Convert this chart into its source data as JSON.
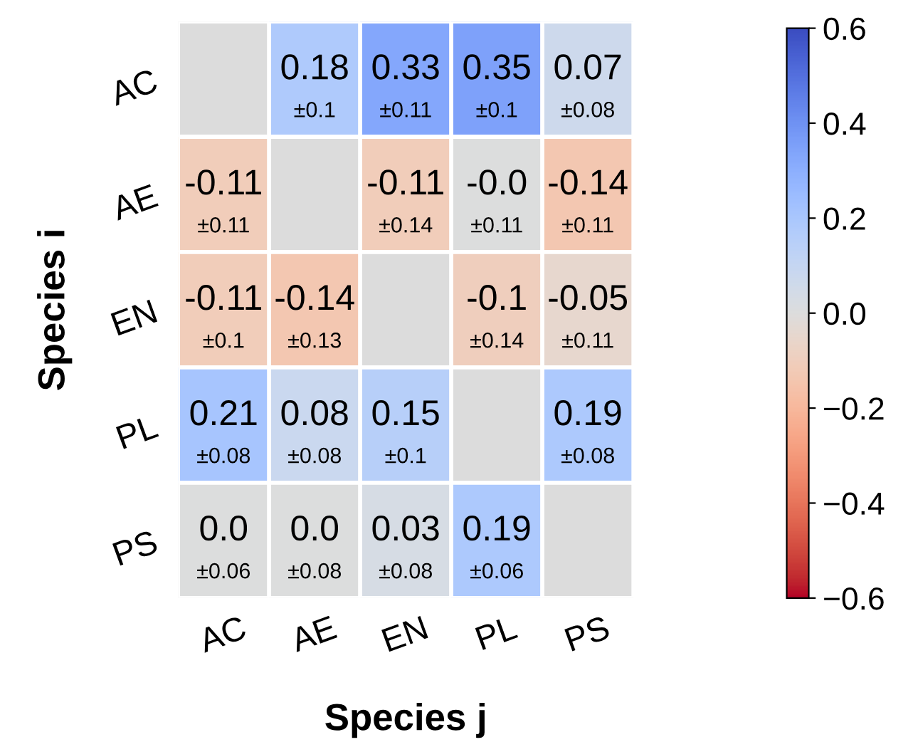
{
  "chart_data": {
    "type": "heatmap",
    "xlabel": "Species j",
    "ylabel": "Species i",
    "categories": [
      "AC",
      "AE",
      "EN",
      "PL",
      "PS"
    ],
    "y_categories": [
      "AC",
      "AE",
      "EN",
      "PL",
      "PS"
    ],
    "cells": [
      [
        null,
        0.18,
        0.33,
        0.35,
        0.07
      ],
      [
        -0.11,
        null,
        -0.11,
        -0.0,
        -0.14
      ],
      [
        -0.11,
        -0.14,
        null,
        -0.1,
        -0.05
      ],
      [
        0.21,
        0.08,
        0.15,
        null,
        0.19
      ],
      [
        0.0,
        0.0,
        0.03,
        0.19,
        null
      ]
    ],
    "cell_labels": [
      [
        null,
        "0.18\n±0.1",
        "0.33\n±0.11",
        "0.35\n±0.1",
        "0.07\n±0.08"
      ],
      [
        "-0.11\n±0.11",
        null,
        "-0.11\n±0.14",
        "-0.0\n±0.11",
        "-0.14\n±0.11"
      ],
      [
        "-0.11\n±0.1",
        "-0.14\n±0.13",
        null,
        "-0.1\n±0.14",
        "-0.05\n±0.11"
      ],
      [
        "0.21\n±0.08",
        "0.08\n±0.08",
        "0.15\n±0.1",
        null,
        "0.19\n±0.08"
      ],
      [
        "0.0\n±0.06",
        "0.0\n±0.08",
        "0.03\n±0.08",
        "0.19\n±0.06",
        null
      ]
    ],
    "clim": [
      -0.6,
      0.6
    ],
    "cticks": [
      {
        "value": -0.6,
        "label": "−0.6"
      },
      {
        "value": -0.4,
        "label": "−0.4"
      },
      {
        "value": -0.2,
        "label": "−0.2"
      },
      {
        "value": 0,
        "label": "0.0"
      },
      0.2,
      0.4,
      0.6
    ]
  }
}
